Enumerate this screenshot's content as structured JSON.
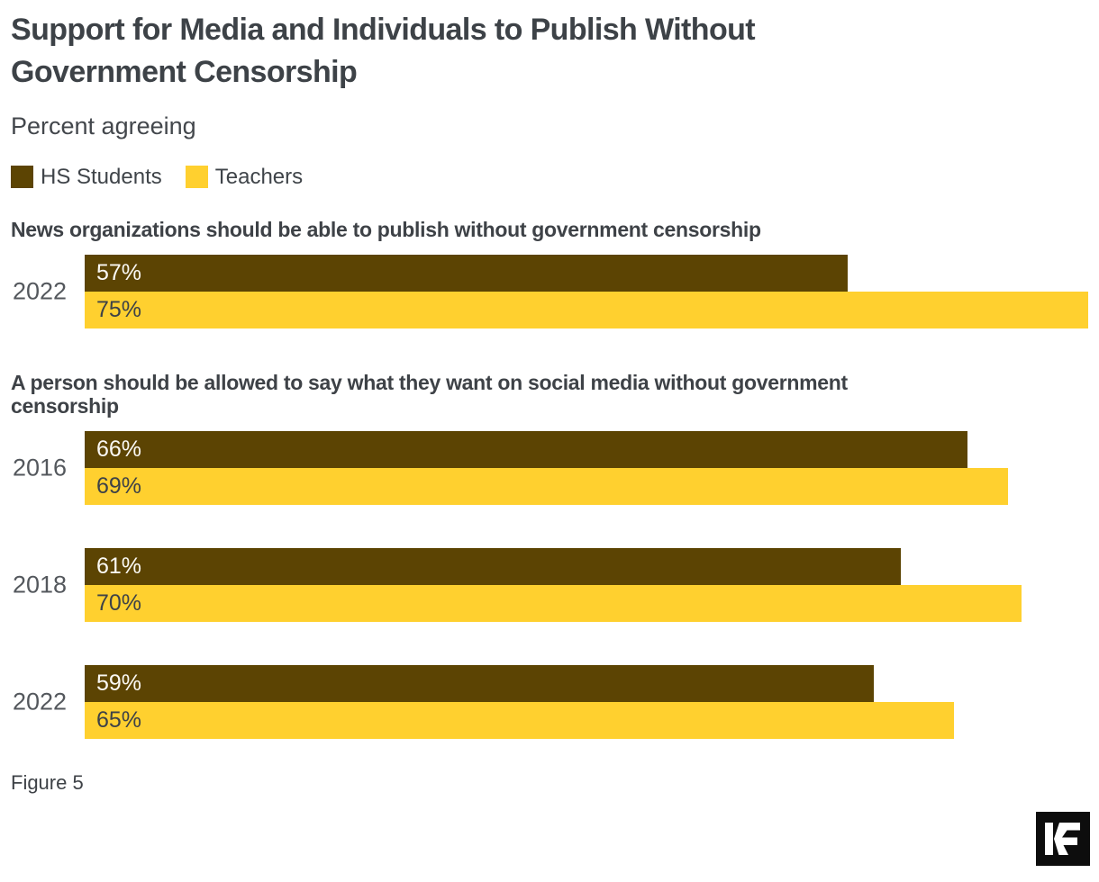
{
  "page": {
    "title_lines": [
      "Support for Media and Individuals to Publish Without",
      "Government Censorship"
    ],
    "subtitle": "Percent agreeing",
    "figure_label": "Figure 5",
    "logo_text": "KF"
  },
  "chart_data": {
    "type": "bar",
    "orientation": "horizontal",
    "title": "Support for Media and Individuals to Publish Without Government Censorship",
    "subtitle": "Percent agreeing",
    "value_axis_max": 75,
    "value_suffix": "%",
    "grid": false,
    "legend_position": "top-left",
    "series": [
      {
        "name": "HS Students",
        "color": "#5c4403",
        "label_color": "#faf8f3"
      },
      {
        "name": "Teachers",
        "color": "#ffd02f",
        "label_color": "#3e4247"
      }
    ],
    "sections": [
      {
        "heading": "News organizations should be able to publish without government censorship",
        "heading_lines": [
          "News organizations should be able to publish without government censorship"
        ],
        "groups": [
          {
            "year": "2022",
            "values": [
              57,
              75
            ]
          }
        ]
      },
      {
        "heading": "A person should be allowed to say what they want on social media without government censorship",
        "heading_lines": [
          "A person should be allowed to say what they want on social media without government",
          "censorship"
        ],
        "groups": [
          {
            "year": "2016",
            "values": [
              66,
              69
            ]
          },
          {
            "year": "2018",
            "values": [
              61,
              70
            ]
          },
          {
            "year": "2022",
            "values": [
              59,
              65
            ]
          }
        ]
      }
    ]
  }
}
